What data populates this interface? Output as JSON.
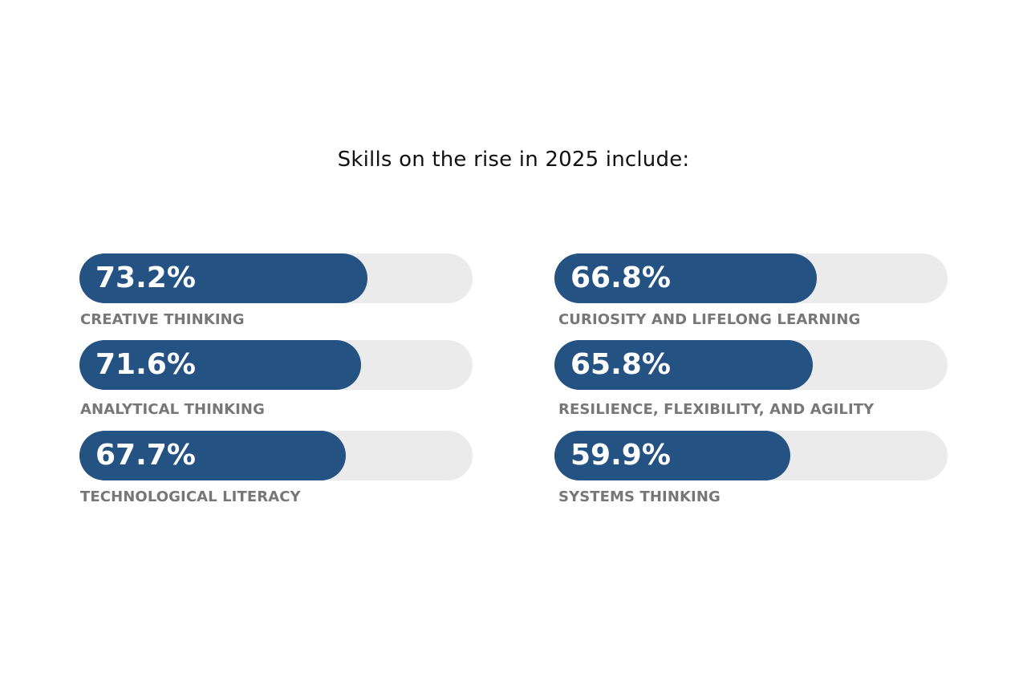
{
  "title": "Skills on the rise in 2025 include:",
  "colors": {
    "fill": "#245282",
    "track": "#ebebeb",
    "percent_text": "#ffffff",
    "label_text": "#777777"
  },
  "chart_data": {
    "type": "bar",
    "title": "Skills on the rise in 2025 include:",
    "unit": "%",
    "ylim": [
      0,
      100
    ],
    "items": [
      {
        "label": "CREATIVE THINKING",
        "value": 73.2,
        "display": "73.2%"
      },
      {
        "label": "ANALYTICAL THINKING",
        "value": 71.6,
        "display": "71.6%"
      },
      {
        "label": "TECHNOLOGICAL LITERACY",
        "value": 67.7,
        "display": "67.7%"
      },
      {
        "label": "CURIOSITY AND LIFELONG LEARNING",
        "value": 66.8,
        "display": "66.8%"
      },
      {
        "label": "RESILIENCE, FLEXIBILITY, AND AGILITY",
        "value": 65.8,
        "display": "65.8%"
      },
      {
        "label": "SYSTEMS THINKING",
        "value": 59.9,
        "display": "59.9%"
      }
    ]
  }
}
